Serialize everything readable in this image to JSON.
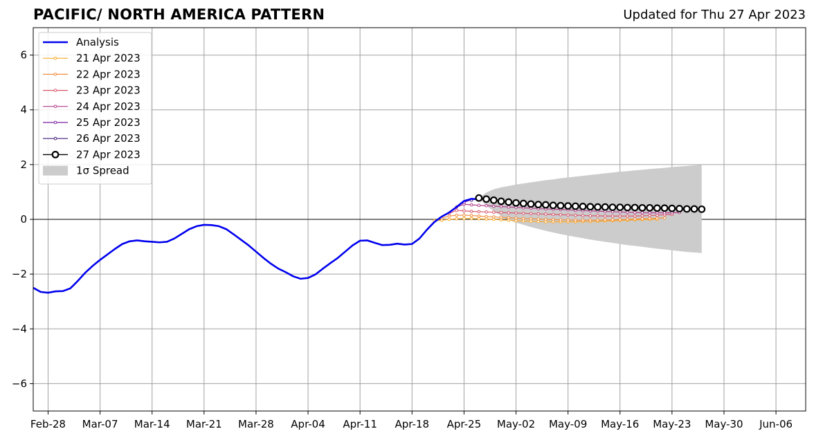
{
  "chart_data": {
    "type": "line",
    "title": "PACIFIC/ NORTH AMERICA PATTERN",
    "subtitle": "Updated for Thu 27 Apr 2023",
    "xlabel": "",
    "ylabel": "",
    "ylim": [
      -7,
      7
    ],
    "yticks": [
      -6,
      -4,
      -2,
      0,
      2,
      4,
      6
    ],
    "ytick_labels": [
      "−6",
      "−4",
      "−2",
      "0",
      "2",
      "4",
      "6"
    ],
    "xlim": [
      "2023-02-26",
      "2023-06-10"
    ],
    "xticks": [
      "2023-02-28",
      "2023-03-07",
      "2023-03-14",
      "2023-03-21",
      "2023-03-28",
      "2023-04-04",
      "2023-04-11",
      "2023-04-18",
      "2023-04-25",
      "2023-05-02",
      "2023-05-09",
      "2023-05-16",
      "2023-05-23",
      "2023-05-30",
      "2023-06-06"
    ],
    "xtick_labels": [
      "Feb-28",
      "Mar-07",
      "Mar-14",
      "Mar-21",
      "Mar-28",
      "Apr-04",
      "Apr-11",
      "Apr-18",
      "Apr-25",
      "May-02",
      "May-09",
      "May-16",
      "May-23",
      "May-30",
      "Jun-06"
    ],
    "grid": true,
    "zero_line": true,
    "legend_position": "top-left",
    "analysis": {
      "name": "Analysis",
      "color": "#0000ee",
      "start_date": "2023-02-26",
      "values": [
        -2.5,
        -2.65,
        -2.68,
        -2.63,
        -2.62,
        -2.52,
        -2.25,
        -1.95,
        -1.7,
        -1.48,
        -1.28,
        -1.08,
        -0.9,
        -0.8,
        -0.77,
        -0.8,
        -0.82,
        -0.84,
        -0.82,
        -0.7,
        -0.53,
        -0.36,
        -0.25,
        -0.2,
        -0.21,
        -0.25,
        -0.36,
        -0.55,
        -0.75,
        -0.95,
        -1.18,
        -1.41,
        -1.62,
        -1.8,
        -1.93,
        -2.08,
        -2.17,
        -2.14,
        -2.01,
        -1.8,
        -1.6,
        -1.41,
        -1.18,
        -0.95,
        -0.78,
        -0.77,
        -0.86,
        -0.94,
        -0.93,
        -0.89,
        -0.92,
        -0.9,
        -0.7,
        -0.38,
        -0.1,
        0.1,
        0.25,
        0.45,
        0.67,
        0.75,
        0.73
      ]
    },
    "forecasts": [
      {
        "name": "21 Apr 2023",
        "color": "#f9a825",
        "start_date": "2023-04-21",
        "values": [
          -0.05,
          -0.03,
          0.0,
          0.02,
          0.03,
          0.03,
          0.02,
          0.01,
          0.0,
          -0.02,
          -0.03,
          -0.05,
          -0.06,
          -0.07,
          -0.08,
          -0.09,
          -0.09,
          -0.09,
          -0.09,
          -0.09,
          -0.08,
          -0.08,
          -0.07,
          -0.06,
          -0.05,
          -0.04,
          -0.03,
          -0.02,
          -0.01,
          0.0,
          0.0
        ]
      },
      {
        "name": "22 Apr 2023",
        "color": "#f08c3c",
        "start_date": "2023-04-22",
        "values": [
          0.05,
          0.12,
          0.15,
          0.15,
          0.14,
          0.12,
          0.1,
          0.09,
          0.07,
          0.06,
          0.04,
          0.03,
          0.02,
          0.01,
          0.0,
          -0.01,
          -0.02,
          -0.02,
          -0.03,
          -0.03,
          -0.03,
          -0.03,
          -0.02,
          -0.02,
          -0.01,
          0.0,
          0.01,
          0.02,
          0.03,
          0.04,
          0.05
        ]
      },
      {
        "name": "23 Apr 2023",
        "color": "#d9556b",
        "start_date": "2023-04-23",
        "values": [
          0.22,
          0.33,
          0.31,
          0.29,
          0.28,
          0.27,
          0.26,
          0.25,
          0.24,
          0.23,
          0.22,
          0.21,
          0.2,
          0.19,
          0.18,
          0.17,
          0.16,
          0.15,
          0.14,
          0.13,
          0.13,
          0.12,
          0.12,
          0.12,
          0.12,
          0.12,
          0.13,
          0.14,
          0.15,
          0.17,
          0.18
        ]
      },
      {
        "name": "24 Apr 2023",
        "color": "#b03a8a",
        "start_date": "2023-04-24",
        "values": [
          0.45,
          0.55,
          0.53,
          0.51,
          0.5,
          0.48,
          0.47,
          0.45,
          0.44,
          0.42,
          0.41,
          0.39,
          0.38,
          0.37,
          0.36,
          0.35,
          0.33,
          0.32,
          0.31,
          0.3,
          0.29,
          0.28,
          0.27,
          0.26,
          0.25,
          0.24,
          0.24,
          0.24,
          0.24,
          0.24,
          0.25
        ]
      },
      {
        "name": "25 Apr 2023",
        "color": "#7a1fa2",
        "start_date": "2023-04-25",
        "values": [
          0.62,
          0.72,
          0.74,
          0.73,
          0.71
        ]
      },
      {
        "name": "26 Apr 2023",
        "color": "#3d1a78",
        "start_date": "2023-04-26",
        "values": [
          0.7,
          0.78,
          0.77
        ]
      },
      {
        "name": "27 Apr 2023",
        "color": "#000000",
        "marker": "open-circle",
        "start_date": "2023-04-27",
        "values": [
          0.78,
          0.74,
          0.7,
          0.66,
          0.63,
          0.6,
          0.58,
          0.56,
          0.54,
          0.53,
          0.51,
          0.5,
          0.49,
          0.48,
          0.47,
          0.46,
          0.45,
          0.45,
          0.44,
          0.44,
          0.43,
          0.43,
          0.42,
          0.42,
          0.41,
          0.41,
          0.4,
          0.39,
          0.38,
          0.38,
          0.37
        ]
      }
    ],
    "spread": {
      "name": "1σ Spread",
      "color": "#cccccc",
      "start_date": "2023-04-27",
      "upper": [
        0.78,
        0.98,
        1.1,
        1.17,
        1.22,
        1.27,
        1.31,
        1.35,
        1.39,
        1.43,
        1.46,
        1.5,
        1.53,
        1.56,
        1.59,
        1.62,
        1.65,
        1.68,
        1.71,
        1.74,
        1.76,
        1.79,
        1.81,
        1.84,
        1.86,
        1.88,
        1.91,
        1.93,
        1.95,
        1.97,
        1.99
      ],
      "lower": [
        0.78,
        0.5,
        0.3,
        0.12,
        -0.02,
        -0.12,
        -0.2,
        -0.28,
        -0.35,
        -0.42,
        -0.48,
        -0.54,
        -0.59,
        -0.64,
        -0.69,
        -0.74,
        -0.78,
        -0.82,
        -0.86,
        -0.9,
        -0.94,
        -0.97,
        -1.0,
        -1.04,
        -1.07,
        -1.1,
        -1.13,
        -1.16,
        -1.19,
        -1.21,
        -1.23
      ]
    }
  }
}
